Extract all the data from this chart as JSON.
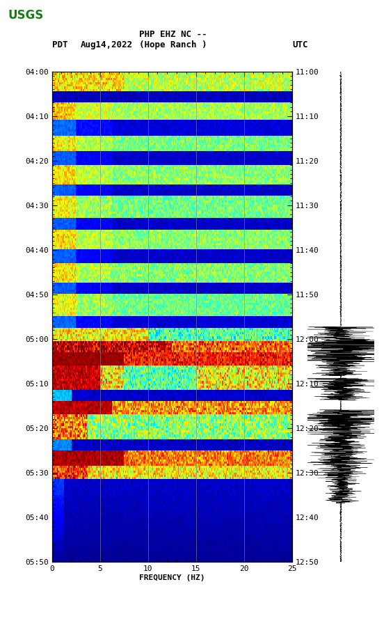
{
  "title_line1": "PHP EHZ NC --",
  "title_line2": "(Hope Ranch )",
  "left_label": "PDT",
  "date_label": "Aug14,2022",
  "right_label": "UTC",
  "xlabel": "FREQUENCY (HZ)",
  "freq_min": 0,
  "freq_max": 25,
  "pdt_ticks": [
    "04:00",
    "04:10",
    "04:20",
    "04:30",
    "04:40",
    "04:50",
    "05:00",
    "05:10",
    "05:20",
    "05:30",
    "05:40",
    "05:50"
  ],
  "utc_ticks": [
    "11:00",
    "11:10",
    "11:20",
    "11:30",
    "11:40",
    "11:50",
    "12:00",
    "12:10",
    "12:20",
    "12:30",
    "12:40",
    "12:50"
  ],
  "freq_ticks": [
    0,
    5,
    10,
    15,
    20,
    25
  ],
  "background_color": "#ffffff",
  "spectrogram_colormap": "jet",
  "vertical_lines_freq": [
    5,
    10,
    15,
    20
  ],
  "fig_width": 5.52,
  "fig_height": 8.92,
  "n_time": 220,
  "n_freq": 250,
  "vline_color": "#888888",
  "vline_alpha": 0.6
}
